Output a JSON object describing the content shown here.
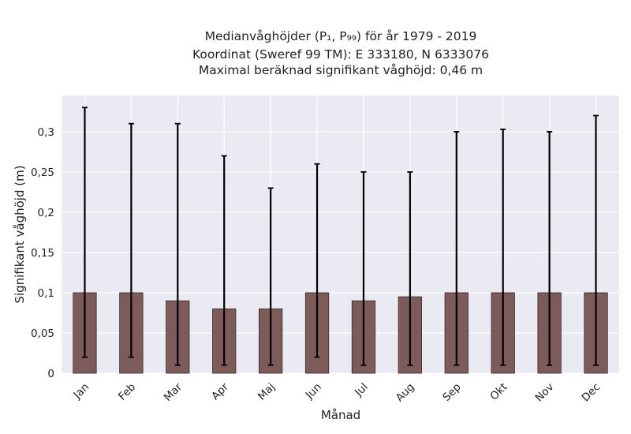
{
  "chart_data": {
    "type": "bar",
    "title_lines": [
      "Medianvåghöjder (P₁, P₉₉) för år 1979 - 2019",
      "Koordinat (Sweref 99 TM): E 333180, N 6333076",
      "Maximal beräknad signifikant våghöjd: 0,46 m"
    ],
    "xlabel": "Månad",
    "ylabel": "Signifikant våghöjd (m)",
    "categories": [
      "Jan",
      "Feb",
      "Mar",
      "Apr",
      "Maj",
      "Jun",
      "Jul",
      "Aug",
      "Sep",
      "Okt",
      "Nov",
      "Dec"
    ],
    "values": [
      0.1,
      0.1,
      0.09,
      0.08,
      0.08,
      0.1,
      0.09,
      0.095,
      0.1,
      0.1,
      0.1,
      0.1
    ],
    "error_low": [
      0.02,
      0.02,
      0.01,
      0.01,
      0.01,
      0.02,
      0.01,
      0.01,
      0.01,
      0.01,
      0.01,
      0.01
    ],
    "error_high": [
      0.33,
      0.31,
      0.31,
      0.27,
      0.23,
      0.26,
      0.25,
      0.25,
      0.3,
      0.303,
      0.3,
      0.32
    ],
    "ylim": [
      0,
      0.345
    ],
    "yticks": [
      0,
      0.05,
      0.1,
      0.15,
      0.2,
      0.25,
      0.3
    ],
    "ytick_labels": [
      "0",
      "0,05",
      "0,1",
      "0,15",
      "0,2",
      "0,25",
      "0,3"
    ],
    "grid": true,
    "bar_color": "#7d5b5b",
    "background_color": "#eaeaf2",
    "error_color": "#000000"
  }
}
